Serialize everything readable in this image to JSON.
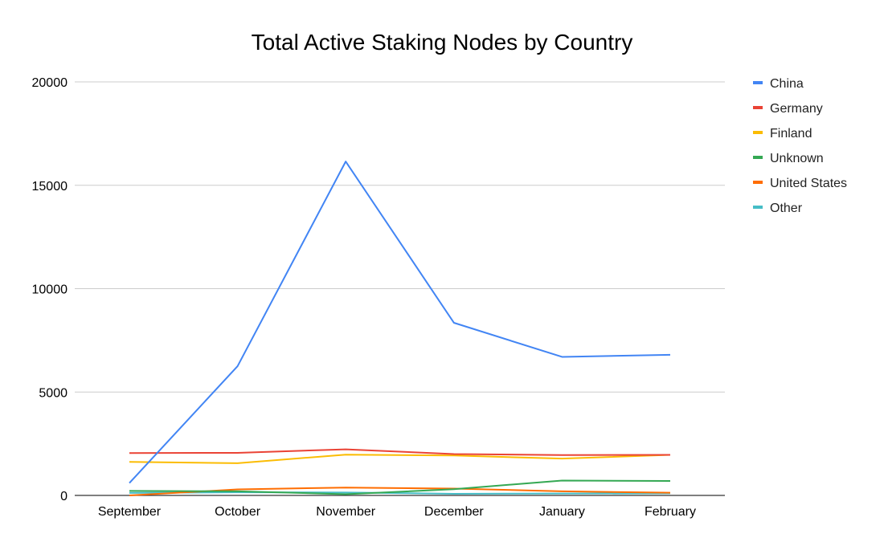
{
  "chart_data": {
    "type": "line",
    "title": "Total Active Staking Nodes by Country",
    "xlabel": "",
    "ylabel": "",
    "categories": [
      "September",
      "October",
      "November",
      "December",
      "January",
      "February"
    ],
    "ylim": [
      0,
      20000
    ],
    "yticks": [
      0,
      5000,
      10000,
      15000,
      20000
    ],
    "grid": true,
    "legend_position": "right",
    "series": [
      {
        "name": "China",
        "color": "#4285f4",
        "values": [
          600,
          6250,
          16150,
          8350,
          6700,
          6800
        ]
      },
      {
        "name": "Germany",
        "color": "#ea4335",
        "values": [
          2050,
          2060,
          2230,
          2000,
          1950,
          1960
        ]
      },
      {
        "name": "Finland",
        "color": "#fbbc04",
        "values": [
          1620,
          1560,
          1970,
          1930,
          1780,
          1960
        ]
      },
      {
        "name": "Unknown",
        "color": "#34a853",
        "values": [
          220,
          200,
          60,
          300,
          720,
          700
        ]
      },
      {
        "name": "United States",
        "color": "#ff6d01",
        "values": [
          0,
          290,
          380,
          330,
          200,
          130
        ]
      },
      {
        "name": "Other",
        "color": "#46bdc6",
        "values": [
          120,
          150,
          140,
          80,
          90,
          100
        ]
      }
    ]
  }
}
